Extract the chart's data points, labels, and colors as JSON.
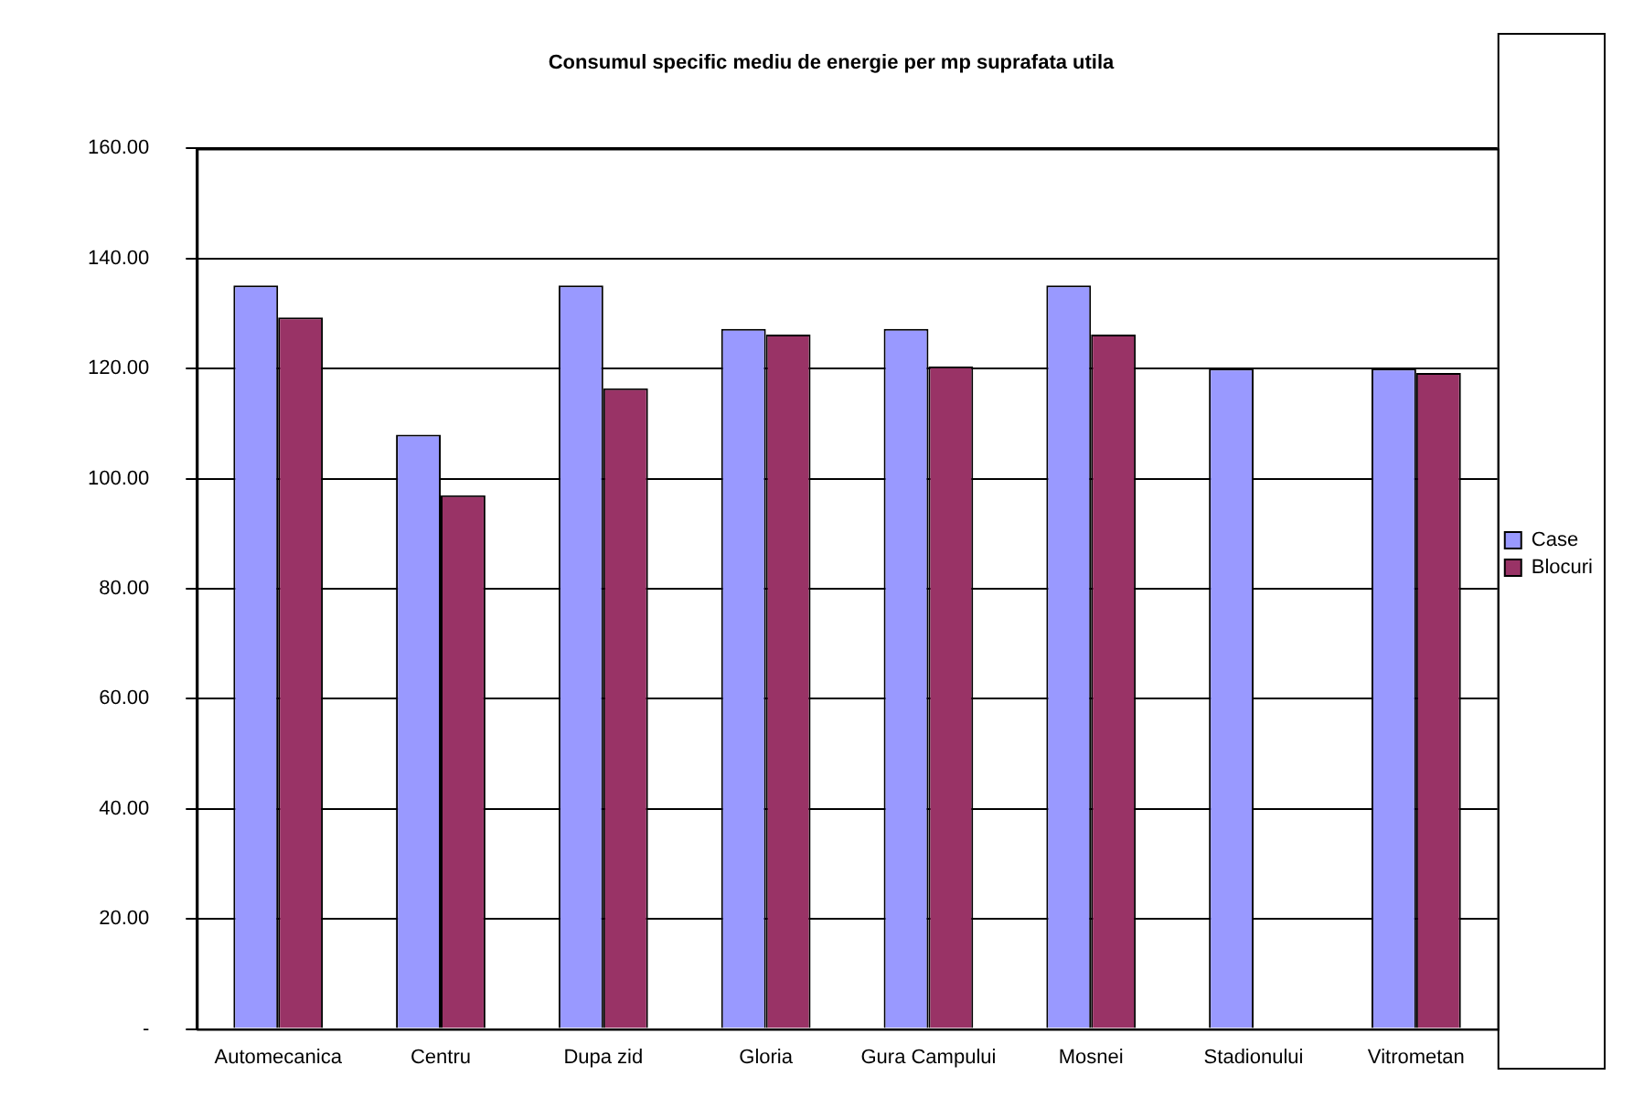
{
  "chart_data": {
    "type": "bar",
    "title": "Consumul specific mediu de energie per mp suprafata utila",
    "categories": [
      "Automecanica",
      "Centru",
      "Dupa zid",
      "Gloria",
      "Gura Campului",
      "Mosnei",
      "Stadionului",
      "Vitrometan"
    ],
    "series": [
      {
        "name": "Case",
        "color": "#9999ff",
        "values": [
          135.1,
          108,
          135.1,
          127.2,
          127.2,
          135.1,
          120,
          120
        ]
      },
      {
        "name": "Blocuri",
        "color": "#993366",
        "values": [
          129.3,
          97,
          116.4,
          126.2,
          120.4,
          126.2,
          null,
          119.2
        ]
      }
    ],
    "ylim": [
      0,
      160
    ],
    "yticks": [
      {
        "value": 0,
        "label": "-"
      },
      {
        "value": 20,
        "label": "20.00"
      },
      {
        "value": 40,
        "label": "40.00"
      },
      {
        "value": 60,
        "label": "60.00"
      },
      {
        "value": 80,
        "label": "80.00"
      },
      {
        "value": 100,
        "label": "100.00"
      },
      {
        "value": 120,
        "label": "120.00"
      },
      {
        "value": 140,
        "label": "140.00"
      },
      {
        "value": 160,
        "label": "160.00"
      }
    ],
    "grid": "y",
    "legend": "right"
  }
}
